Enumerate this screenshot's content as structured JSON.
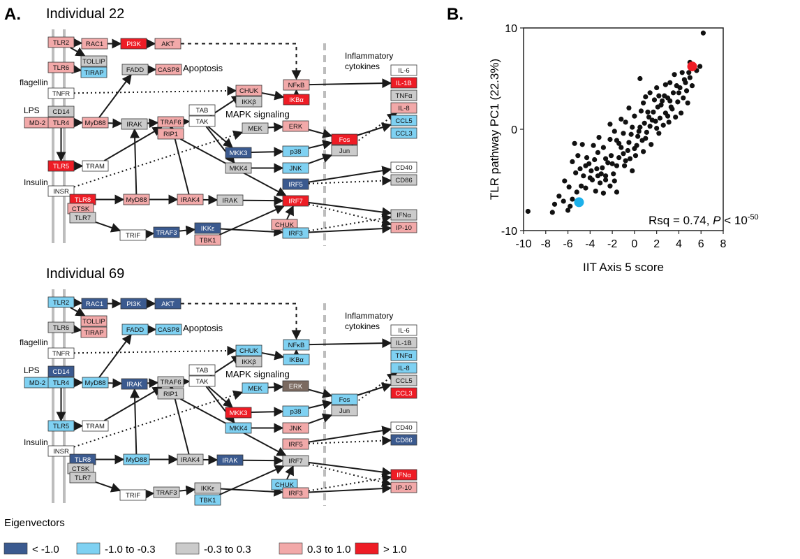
{
  "panel_a": {
    "label": "A.",
    "ind1_title": "Individual 22",
    "ind2_title": "Individual 69",
    "txt_apoptosis": "Apoptosis",
    "txt_mapk": "MAPK signaling",
    "txt_inflam1": "Inflammatory",
    "txt_inflam2": "cytokines",
    "txt_flagellin": "flagellin",
    "txt_lps": "LPS",
    "txt_insulin": "Insulin"
  },
  "colors": {
    "lt-1": "#3b5a8f",
    "-1to-0.3": "#7fd1f2",
    "-0.3to0.3": "#cbcbcb",
    "0.3to1": "#f2a9a9",
    "gt1": "#ee1c25",
    "white": "#ffffff",
    "brown": "#7b6a60"
  },
  "nodes": [
    {
      "id": "TLR2",
      "label": "TLR2",
      "c1": "0.3to1",
      "c2": "-1to-0.3"
    },
    {
      "id": "RAC1",
      "label": "RAC1",
      "c1": "0.3to1",
      "c2": "lt-1"
    },
    {
      "id": "PI3K",
      "label": "PI3K",
      "c1": "gt1",
      "c2": "lt-1"
    },
    {
      "id": "AKT",
      "label": "AKT",
      "c1": "0.3to1",
      "c2": "lt-1"
    },
    {
      "id": "TOLLIP",
      "label": "TOLLIP",
      "c1": "-0.3to0.3",
      "c2": "0.3to1"
    },
    {
      "id": "TIRAP",
      "label": "TIRAP",
      "c1": "-1to-0.3",
      "c2": "0.3to1"
    },
    {
      "id": "TLR6",
      "label": "TLR6",
      "c1": "0.3to1",
      "c2": "-0.3to0.3"
    },
    {
      "id": "FADD",
      "label": "FADD",
      "c1": "-0.3to0.3",
      "c2": "-1to-0.3"
    },
    {
      "id": "CASP8",
      "label": "CASP8",
      "c1": "0.3to1",
      "c2": "-1to-0.3"
    },
    {
      "id": "TNFR",
      "label": "TNFR",
      "c1": "white",
      "c2": "white"
    },
    {
      "id": "CHUK1",
      "label": "CHUK",
      "c1": "0.3to1",
      "c2": "-1to-0.3"
    },
    {
      "id": "IKKB",
      "label": "IKKβ",
      "c1": "-0.3to0.3",
      "c2": "-0.3to0.3"
    },
    {
      "id": "NFKB",
      "label": "NFκB",
      "c1": "0.3to1",
      "c2": "-1to-0.3"
    },
    {
      "id": "IKBA",
      "label": "IKBα",
      "c1": "gt1",
      "c2": "-1to-0.3"
    },
    {
      "id": "CD14",
      "label": "CD14",
      "c1": "-0.3to0.3",
      "c2": "lt-1"
    },
    {
      "id": "MD2",
      "label": "MD-2",
      "c1": "0.3to1",
      "c2": "-1to-0.3"
    },
    {
      "id": "TLR4",
      "label": "TLR4",
      "c1": "0.3to1",
      "c2": "-1to-0.3"
    },
    {
      "id": "MYD88a",
      "label": "MyD88",
      "c1": "0.3to1",
      "c2": "-1to-0.3"
    },
    {
      "id": "IRAKa",
      "label": "IRAK",
      "c1": "-0.3to0.3",
      "c2": "lt-1"
    },
    {
      "id": "TAB",
      "label": "TAB",
      "c1": "white",
      "c2": "white"
    },
    {
      "id": "TAK",
      "label": "TAK",
      "c1": "white",
      "c2": "white"
    },
    {
      "id": "TRAF6",
      "label": "TRAF6",
      "c1": "0.3to1",
      "c2": "-0.3to0.3"
    },
    {
      "id": "RIP1",
      "label": "RIP1",
      "c1": "0.3to1",
      "c2": "-0.3to0.3"
    },
    {
      "id": "MEK",
      "label": "MEK",
      "c1": "-0.3to0.3",
      "c2": "-1to-0.3"
    },
    {
      "id": "ERK",
      "label": "ERK",
      "c1": "0.3to1",
      "c2": "brown"
    },
    {
      "id": "MKK3",
      "label": "MKK3",
      "c1": "lt-1",
      "c2": "gt1"
    },
    {
      "id": "P38",
      "label": "p38",
      "c1": "-1to-0.3",
      "c2": "-1to-0.3"
    },
    {
      "id": "MKK4",
      "label": "MKK4",
      "c1": "-0.3to0.3",
      "c2": "-1to-0.3"
    },
    {
      "id": "JNK",
      "label": "JNK",
      "c1": "-1to-0.3",
      "c2": "0.3to1"
    },
    {
      "id": "FOS",
      "label": "Fos",
      "c1": "gt1",
      "c2": "-1to-0.3"
    },
    {
      "id": "JUN",
      "label": "Jun",
      "c1": "-0.3to0.3",
      "c2": "-0.3to0.3"
    },
    {
      "id": "TLR5",
      "label": "TLR5",
      "c1": "gt1",
      "c2": "-1to-0.3"
    },
    {
      "id": "TRAM",
      "label": "TRAM",
      "c1": "white",
      "c2": "white"
    },
    {
      "id": "INSR",
      "label": "INSR",
      "c1": "white",
      "c2": "white"
    },
    {
      "id": "IRF5",
      "label": "IRF5",
      "c1": "lt-1",
      "c2": "0.3to1"
    },
    {
      "id": "TLR8",
      "label": "TLR8",
      "c1": "gt1",
      "c2": "lt-1"
    },
    {
      "id": "CTSK",
      "label": "CTSK",
      "c1": "0.3to1",
      "c2": "-0.3to0.3"
    },
    {
      "id": "TLR7",
      "label": "TLR7",
      "c1": "-0.3to0.3",
      "c2": "-0.3to0.3"
    },
    {
      "id": "MYD88b",
      "label": "MyD88",
      "c1": "0.3to1",
      "c2": "-1to-0.3"
    },
    {
      "id": "IRAK4",
      "label": "IRAK4",
      "c1": "0.3to1",
      "c2": "-0.3to0.3"
    },
    {
      "id": "IRAKb",
      "label": "IRAK",
      "c1": "-0.3to0.3",
      "c2": "lt-1"
    },
    {
      "id": "IRF7",
      "label": "IRF7",
      "c1": "gt1",
      "c2": "-0.3to0.3"
    },
    {
      "id": "CHUK2",
      "label": "CHUK",
      "c1": "0.3to1",
      "c2": "-1to-0.3"
    },
    {
      "id": "TRIF",
      "label": "TRIF",
      "c1": "white",
      "c2": "white"
    },
    {
      "id": "TRAF3",
      "label": "TRAF3",
      "c1": "lt-1",
      "c2": "-0.3to0.3"
    },
    {
      "id": "IKKE",
      "label": "IKKε",
      "c1": "lt-1",
      "c2": "-0.3to0.3"
    },
    {
      "id": "TBK1",
      "label": "TBK1",
      "c1": "0.3to1",
      "c2": "-1to-0.3"
    },
    {
      "id": "IRF3",
      "label": "IRF3",
      "c1": "-1to-0.3",
      "c2": "0.3to1"
    },
    {
      "id": "IL6",
      "label": "IL-6",
      "c1": "white",
      "c2": "white"
    },
    {
      "id": "IL1B",
      "label": "IL-1B",
      "c1": "gt1",
      "c2": "-0.3to0.3"
    },
    {
      "id": "TNFA",
      "label": "TNFα",
      "c1": "-0.3to0.3",
      "c2": "-1to-0.3"
    },
    {
      "id": "IL8",
      "label": "IL-8",
      "c1": "0.3to1",
      "c2": "-1to-0.3"
    },
    {
      "id": "CCL5",
      "label": "CCL5",
      "c1": "-1to-0.3",
      "c2": "-0.3to0.3"
    },
    {
      "id": "CCL3",
      "label": "CCL3",
      "c1": "-1to-0.3",
      "c2": "gt1"
    },
    {
      "id": "CD40",
      "label": "CD40",
      "c1": "white",
      "c2": "white"
    },
    {
      "id": "CD86",
      "label": "CD86",
      "c1": "-0.3to0.3",
      "c2": "lt-1"
    },
    {
      "id": "IFNA",
      "label": "IFNα",
      "c1": "-0.3to0.3",
      "c2": "gt1"
    },
    {
      "id": "IP10",
      "label": "IP-10",
      "c1": "0.3to1",
      "c2": "0.3to1"
    }
  ],
  "legend": {
    "title": "Eigenvectors",
    "items": [
      {
        "label": "< -1.0",
        "color": "lt-1"
      },
      {
        "label": "-1.0 to -0.3",
        "color": "-1to-0.3"
      },
      {
        "label": "-0.3 to  0.3",
        "color": "-0.3to0.3"
      },
      {
        "label": "0.3 to  1.0",
        "color": "0.3to1"
      },
      {
        "label": "> 1.0",
        "color": "gt1"
      }
    ]
  },
  "panel_b": {
    "label": "B."
  },
  "chart_data": {
    "type": "scatter",
    "xlabel": "IIT Axis 5 score",
    "ylabel": "TLR pathway PC1 (22.3%)",
    "xlim": [
      -10,
      8
    ],
    "ylim": [
      -10,
      10
    ],
    "xticks": [
      "-10",
      "-8",
      "-6",
      "-4",
      "-2",
      "0",
      "2",
      "4",
      "6",
      "8"
    ],
    "yticks": [
      "10",
      "0",
      "-10"
    ],
    "annotation": {
      "pre": "Rsq = 0.74, ",
      "p": "P",
      "mid": " < 10",
      "sup": "-50"
    },
    "highlight": [
      {
        "name": "Individual 22",
        "x": 5.2,
        "y": 6.2,
        "color": "#ee1c25"
      },
      {
        "name": "Individual 69",
        "x": -5.0,
        "y": -7.2,
        "color": "#1cb0ea"
      }
    ],
    "points": [
      [
        -9.6,
        -8.1
      ],
      [
        -7.4,
        -8.2
      ],
      [
        -7.2,
        -7.4
      ],
      [
        -6.4,
        -7.1
      ],
      [
        -6.0,
        -8.0
      ],
      [
        -5.6,
        -6.9
      ],
      [
        -5.9,
        -5.7
      ],
      [
        -4.8,
        -5.6
      ],
      [
        -4.4,
        -5.8
      ],
      [
        -6.3,
        -5.1
      ],
      [
        -5.2,
        -6.2
      ],
      [
        -4.6,
        -4.6
      ],
      [
        -3.8,
        -5.0
      ],
      [
        -3.5,
        -6.1
      ],
      [
        -2.8,
        -6.3
      ],
      [
        -3.1,
        -5.3
      ],
      [
        -2.2,
        -5.6
      ],
      [
        -1.6,
        -6.2
      ],
      [
        -5.6,
        -3.2
      ],
      [
        -5.1,
        -2.6
      ],
      [
        -5.4,
        -1.4
      ],
      [
        -4.7,
        -1.5
      ],
      [
        -4.3,
        -2.8
      ],
      [
        -4.1,
        -3.4
      ],
      [
        -3.9,
        -4.1
      ],
      [
        -3.6,
        -3.0
      ],
      [
        -3.3,
        -2.3
      ],
      [
        -3.7,
        -1.6
      ],
      [
        -2.9,
        -3.8
      ],
      [
        -2.6,
        -4.6
      ],
      [
        -2.4,
        -3.3
      ],
      [
        -2.1,
        -2.6
      ],
      [
        -2.8,
        -1.8
      ],
      [
        -2.2,
        -1.0
      ],
      [
        -1.9,
        -4.4
      ],
      [
        -1.6,
        -3.6
      ],
      [
        -1.4,
        -2.8
      ],
      [
        -1.2,
        -1.8
      ],
      [
        -1.6,
        -1.1
      ],
      [
        -1.0,
        -0.4
      ],
      [
        -0.8,
        -3.1
      ],
      [
        -0.6,
        -2.1
      ],
      [
        -0.5,
        -1.3
      ],
      [
        -0.3,
        -0.5
      ],
      [
        -0.2,
        -4.1
      ],
      [
        0.1,
        -2.6
      ],
      [
        0.2,
        -1.6
      ],
      [
        0.3,
        -0.7
      ],
      [
        0.5,
        0.2
      ],
      [
        0.7,
        -1.1
      ],
      [
        0.8,
        -2.2
      ],
      [
        0.9,
        0.6
      ],
      [
        1.1,
        -0.3
      ],
      [
        1.3,
        1.2
      ],
      [
        1.4,
        0.3
      ],
      [
        1.5,
        -1.5
      ],
      [
        1.7,
        1.7
      ],
      [
        1.9,
        0.8
      ],
      [
        2.1,
        2.2
      ],
      [
        2.2,
        -0.4
      ],
      [
        2.3,
        1.1
      ],
      [
        2.5,
        2.8
      ],
      [
        2.6,
        0.4
      ],
      [
        2.8,
        1.6
      ],
      [
        3.0,
        3.1
      ],
      [
        3.1,
        0.7
      ],
      [
        3.3,
        2.2
      ],
      [
        3.5,
        3.6
      ],
      [
        3.7,
        1.2
      ],
      [
        3.9,
        2.7
      ],
      [
        4.1,
        4.1
      ],
      [
        4.2,
        1.6
      ],
      [
        4.4,
        3.1
      ],
      [
        4.6,
        4.6
      ],
      [
        4.8,
        2.6
      ],
      [
        5.0,
        5.1
      ],
      [
        5.6,
        5.8
      ],
      [
        5.9,
        6.2
      ],
      [
        6.2,
        9.5
      ],
      [
        5.0,
        6.6
      ],
      [
        4.3,
        5.6
      ],
      [
        3.6,
        5.4
      ],
      [
        3.2,
        4.6
      ],
      [
        0.5,
        5.0
      ],
      [
        1.4,
        3.6
      ],
      [
        2.0,
        4.1
      ],
      [
        2.8,
        4.4
      ],
      [
        -0.5,
        2.1
      ],
      [
        -1.2,
        1.0
      ],
      [
        -2.2,
        0.5
      ],
      [
        -3.2,
        -0.8
      ],
      [
        -1.8,
        -0.2
      ],
      [
        -0.8,
        0.7
      ],
      [
        0.0,
        1.3
      ],
      [
        0.8,
        2.6
      ],
      [
        1.8,
        2.9
      ],
      [
        2.7,
        3.3
      ],
      [
        3.4,
        2.0
      ],
      [
        4.0,
        3.6
      ],
      [
        4.7,
        3.8
      ],
      [
        5.2,
        4.3
      ],
      [
        -4.0,
        -4.8
      ],
      [
        -3.0,
        -4.4
      ],
      [
        -2.0,
        -3.4
      ],
      [
        -1.0,
        -2.4
      ],
      [
        0.0,
        -1.9
      ],
      [
        1.0,
        -0.9
      ],
      [
        2.0,
        0.1
      ],
      [
        3.0,
        1.3
      ],
      [
        -6.8,
        -6.6
      ],
      [
        -5.8,
        -7.6
      ],
      [
        -0.4,
        -2.9
      ],
      [
        0.4,
        -0.2
      ],
      [
        1.6,
        0.9
      ],
      [
        2.4,
        2.4
      ],
      [
        3.8,
        4.3
      ],
      [
        4.9,
        5.6
      ],
      [
        -2.6,
        -2.9
      ],
      [
        -1.4,
        -1.4
      ],
      [
        -0.2,
        0.2
      ],
      [
        1.2,
        1.7
      ],
      [
        2.2,
        3.3
      ],
      [
        3.2,
        2.8
      ],
      [
        4.5,
        4.9
      ],
      [
        -3.4,
        -3.9
      ],
      [
        0.6,
        1.8
      ],
      [
        1.0,
        3.2
      ],
      [
        -0.9,
        -3.6
      ],
      [
        -1.8,
        -5.1
      ],
      [
        -2.6,
        -5.0
      ],
      [
        -3.3,
        -4.6
      ],
      [
        -4.4,
        -3.6
      ],
      [
        -4.9,
        -3.9
      ],
      [
        -5.3,
        -4.3
      ]
    ]
  }
}
